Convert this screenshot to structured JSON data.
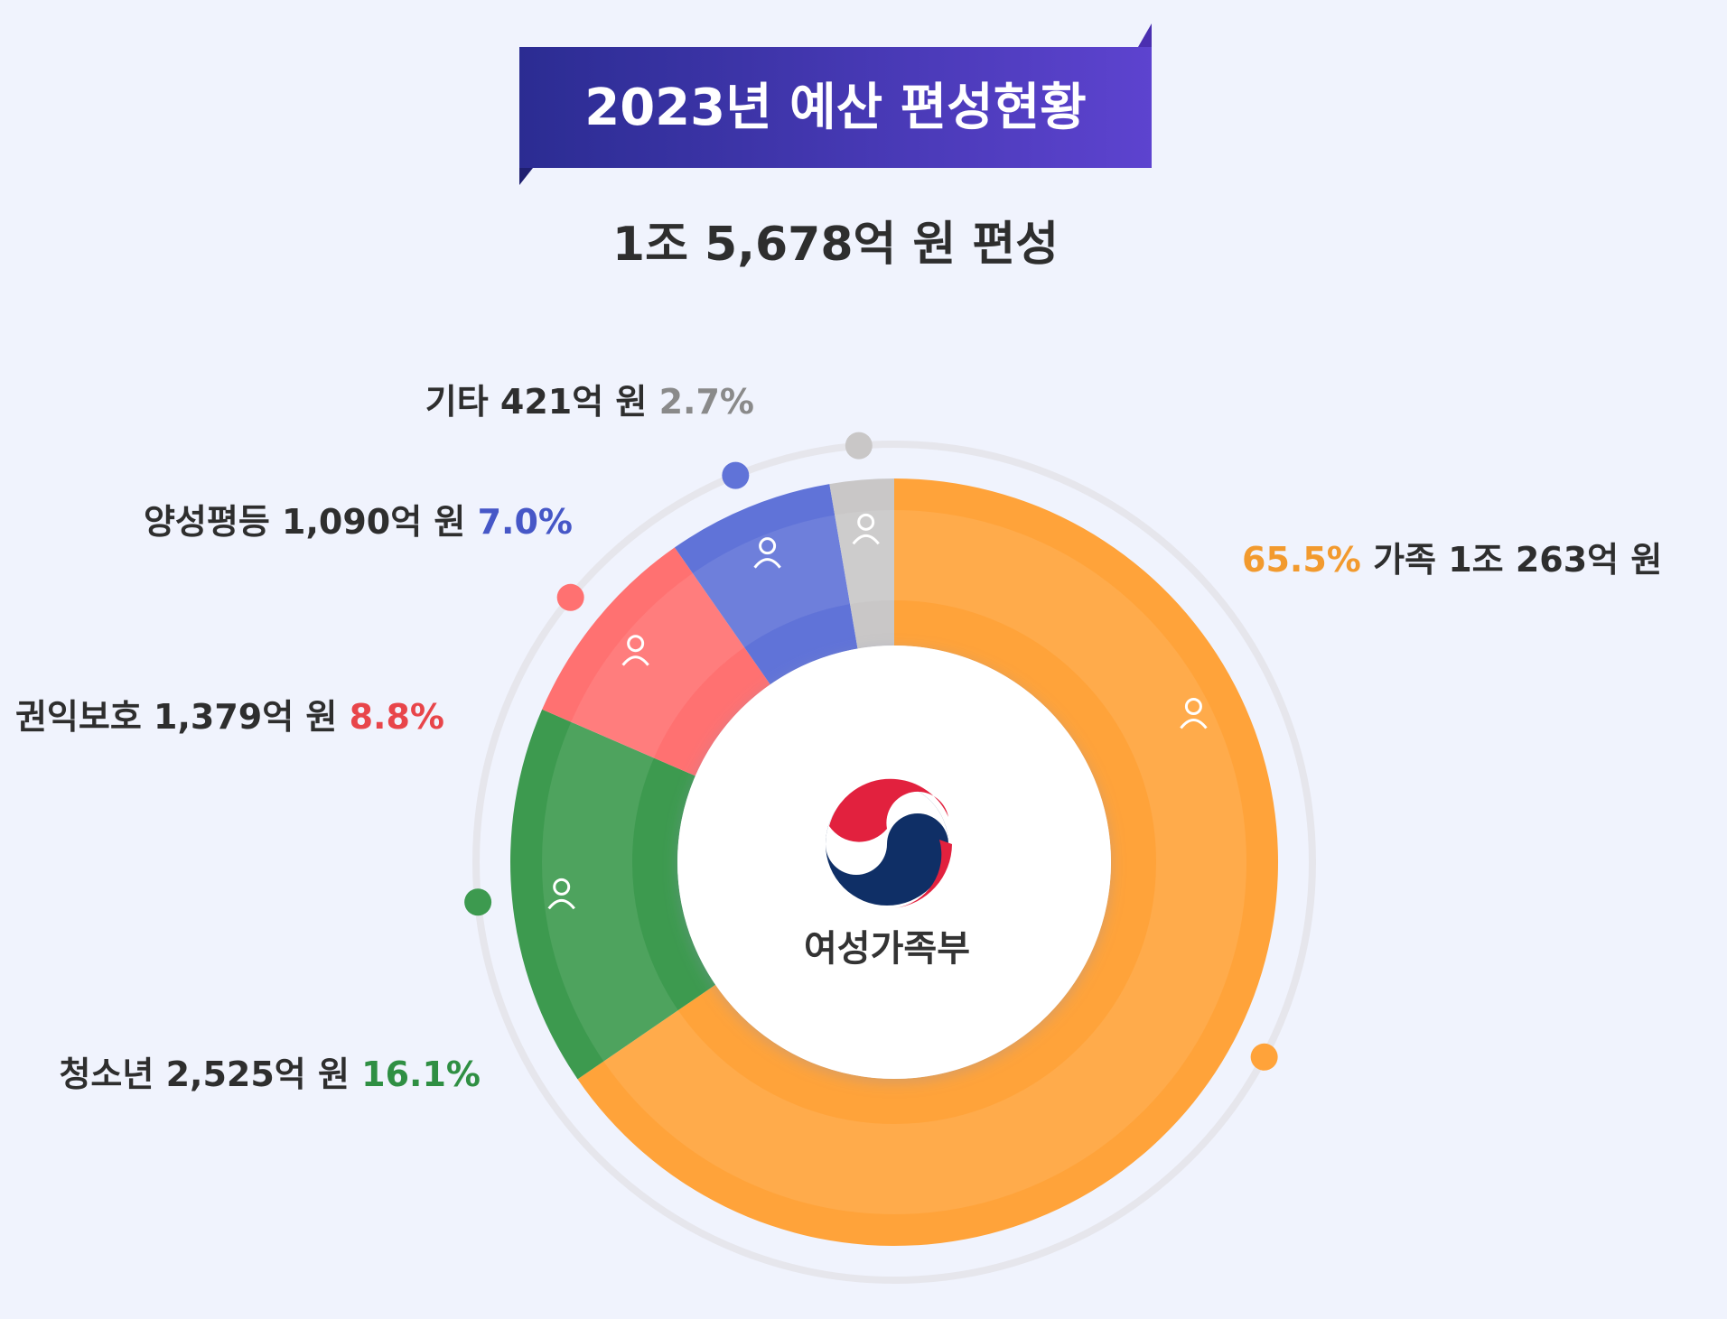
{
  "chart_data": {
    "type": "pie",
    "title": "2023년 예산 편성현황",
    "subtitle": "1조 5,678억 원 편성",
    "center_label": "여성가족부",
    "total": "1조 5,678억 원",
    "categories": [
      "가족",
      "청소년",
      "권익보호",
      "양성평등",
      "기타"
    ],
    "values": [
      65.5,
      16.1,
      8.8,
      7.0,
      2.7
    ],
    "amounts": [
      "1조 263억 원",
      "2,525억 원",
      "1,379억 원",
      "1,090억 원",
      "421억 원"
    ],
    "percent_labels": [
      "65.5%",
      "16.1%",
      "8.8%",
      "7.0%",
      "2.7%"
    ],
    "colors": [
      "#ffa33a",
      "#3d9a4f",
      "#ff7171",
      "#6073d8",
      "#c9c7c7"
    ],
    "icons": [
      "family-icon",
      "children-icon",
      "hand-sprout-icon",
      "person-icon",
      "pencil-icon"
    ]
  },
  "style": {
    "background": "#f0f3fd",
    "banner_gradient": [
      "#2b2c92",
      "#5d43cf"
    ],
    "label_text_color": "#2e2e2e",
    "percent_colors": [
      "#f29a2e",
      "#2f8f43",
      "#e8454a",
      "#4657c7",
      "#8a8a8a"
    ]
  }
}
